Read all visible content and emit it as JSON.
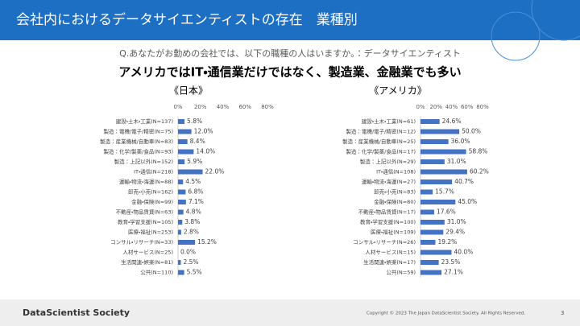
{
  "header": {
    "title": "会社内におけるデータサイエンティストの存在　業種別"
  },
  "question": "Q.あなたがお勤めの会社では、以下の職種の人はいますか。：データサイエンティスト",
  "headline": "アメリカではIT・通信業だけではなく、製造業、金融業でも多い",
  "footer": {
    "brand": "DataScientist Society",
    "copyright": "Copyright © 2023  The Japan DataScientist Society. All Rights Reserved.",
    "page": "3"
  },
  "chart_data": [
    {
      "type": "bar",
      "orientation": "horizontal",
      "title": "《日本》",
      "categories": [
        "建設・土木・工業(N=137)",
        "製造：電機/電子/精密(N=75)",
        "製造：産業機械/自動車(N=83)",
        "製造：化学/製薬/食品(N=93)",
        "製造：上記以外(N=152)",
        "IT・通信(N=218)",
        "運輸・物流・海運(N=88)",
        "卸売・小売(N=162)",
        "金融・保険(N=99)",
        "不動産・物品賃貸(N=63)",
        "教育・学習支援(N=105)",
        "医療・福祉(N=253)",
        "コンサル・リサーチ(N=33)",
        "人材サービス(N=25)",
        "生活関連・娯楽(N=81)",
        "公共(N=110)"
      ],
      "values": [
        5.8,
        12.0,
        8.4,
        14.0,
        5.9,
        22.0,
        4.5,
        6.8,
        7.1,
        4.8,
        3.8,
        2.8,
        15.2,
        0.0,
        2.5,
        5.5
      ],
      "value_labels": [
        "5.8%",
        "12.0%",
        "8.4%",
        "14.0%",
        "5.9%",
        "22.0%",
        "4.5%",
        "6.8%",
        "7.1%",
        "4.8%",
        "3.8%",
        "2.8%",
        "15.2%",
        "0.0%",
        "2.5%",
        "5.5%"
      ],
      "color": "#4472c4",
      "xlim": [
        0,
        80
      ],
      "xticks": [
        {
          "value": 0,
          "label": "0%"
        },
        {
          "value": 20,
          "label": "20%"
        },
        {
          "value": 40,
          "label": "40%"
        },
        {
          "value": 60,
          "label": "60%"
        },
        {
          "value": 80,
          "label": "80%"
        }
      ]
    },
    {
      "type": "bar",
      "orientation": "horizontal",
      "title": "《アメリカ》",
      "categories": [
        "建設・土木・工業(N=61)",
        "製造：電機/電子/精密(N=12)",
        "製造：産業機械/自動車(N=25)",
        "製造：化学/製薬/食品(N=17)",
        "製造：上記以外(N=29)",
        "IT・通信(N=108)",
        "運輸・物流・海運(N=27)",
        "卸売・小売(N=83)",
        "金融・保険(N=80)",
        "不動産・物品賃貸(N=17)",
        "教育・学習支援(N=100)",
        "医療・福祉(N=109)",
        "コンサル・リサーチ(N=26)",
        "人材サービス(N=15)",
        "生活関連・娯楽(N=17)",
        "公共(N=59)"
      ],
      "values": [
        24.6,
        50.0,
        36.0,
        58.8,
        31.0,
        60.2,
        40.7,
        15.7,
        45.0,
        17.6,
        31.0,
        29.4,
        19.2,
        40.0,
        23.5,
        27.1
      ],
      "value_labels": [
        "24.6%",
        "50.0%",
        "36.0%",
        "58.8%",
        "31.0%",
        "60.2%",
        "40.7%",
        "15.7%",
        "45.0%",
        "17.6%",
        "31.0%",
        "29.4%",
        "19.2%",
        "40.0%",
        "23.5%",
        "27.1%"
      ],
      "color": "#4472c4",
      "xlim": [
        0,
        80
      ],
      "xticks": [
        {
          "value": 0,
          "label": "0%"
        },
        {
          "value": 20,
          "label": "20%"
        },
        {
          "value": 40,
          "label": "40%"
        },
        {
          "value": 60,
          "label": "60%"
        },
        {
          "value": 80,
          "label": "80%"
        }
      ]
    }
  ]
}
